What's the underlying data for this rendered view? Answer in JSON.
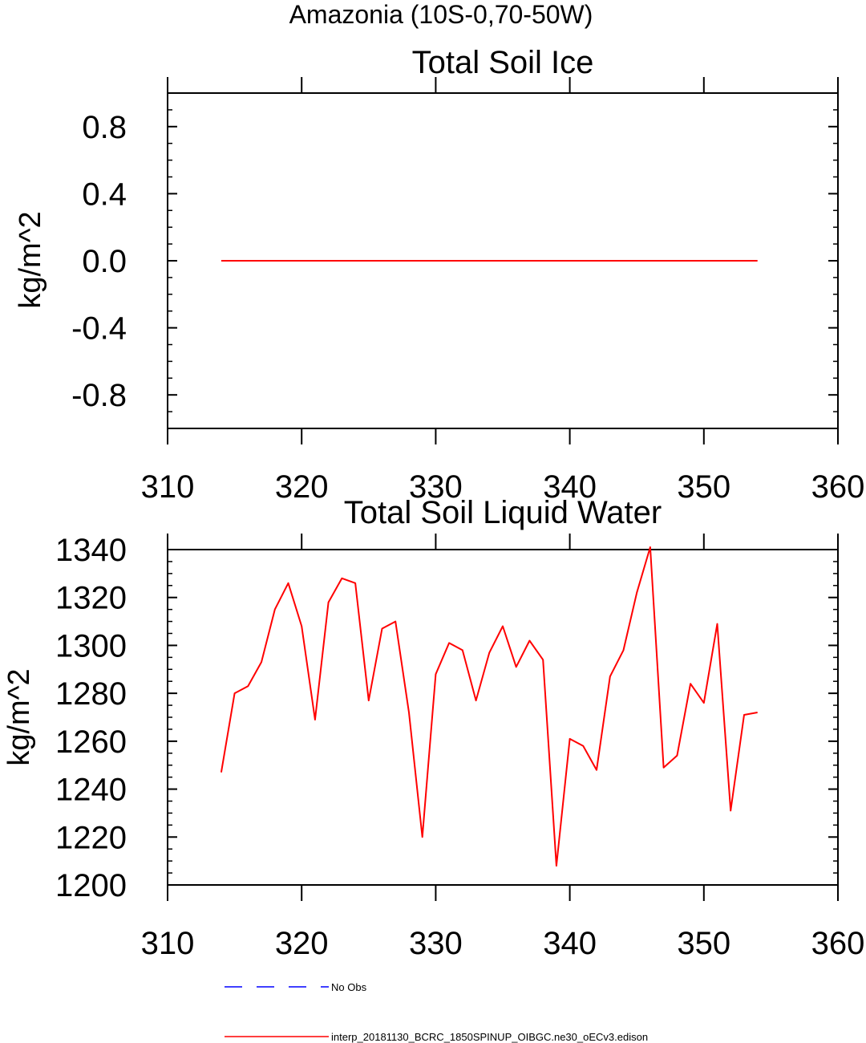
{
  "title": "Amazonia (10S-0,70-50W)",
  "colors": {
    "model": "#ff0000",
    "obs": "#0000ff",
    "axis": "#000000"
  },
  "chart_data": [
    {
      "type": "line",
      "title": "Total Soil Ice",
      "xlabel": "",
      "ylabel": "kg/m^2",
      "xlim": [
        310,
        360
      ],
      "ylim": [
        -1,
        1
      ],
      "x_ticks": [
        "310",
        "320",
        "330",
        "340",
        "350",
        "360"
      ],
      "y_ticks": [
        "0.8",
        "0.4",
        "0.0",
        "-0.4",
        "-0.8"
      ],
      "y_tick_values": [
        0.8,
        0.4,
        0.0,
        -0.4,
        -0.8
      ],
      "grid": false,
      "series": [
        {
          "name": "interp_20181130_BCRC_1850SPINUP_OIBGC.ne30_oECv3.edison",
          "x": [
            314,
            354
          ],
          "values": [
            0,
            0
          ]
        }
      ]
    },
    {
      "type": "line",
      "title": "Total Soil Liquid Water",
      "xlabel": "",
      "ylabel": "kg/m^2",
      "xlim": [
        310,
        360
      ],
      "ylim": [
        1200,
        1340
      ],
      "x_ticks": [
        "310",
        "320",
        "330",
        "340",
        "350",
        "360"
      ],
      "y_ticks": [
        "1340",
        "1320",
        "1300",
        "1280",
        "1260",
        "1240",
        "1220",
        "1200"
      ],
      "y_tick_values": [
        1340,
        1320,
        1300,
        1280,
        1260,
        1240,
        1220,
        1200
      ],
      "grid": false,
      "series": [
        {
          "name": "interp_20181130_BCRC_1850SPINUP_OIBGC.ne30_oECv3.edison",
          "x": [
            314,
            315,
            316,
            317,
            318,
            319,
            320,
            321,
            322,
            323,
            324,
            325,
            326,
            327,
            328,
            329,
            330,
            331,
            332,
            333,
            334,
            335,
            336,
            337,
            338,
            339,
            340,
            341,
            342,
            343,
            344,
            345,
            346,
            347,
            348,
            349,
            350,
            351,
            352,
            353,
            354
          ],
          "values": [
            1247,
            1280,
            1283,
            1293,
            1315,
            1326,
            1308,
            1269,
            1318,
            1328,
            1326,
            1277,
            1307,
            1310,
            1272,
            1220,
            1288,
            1301,
            1298,
            1277,
            1297,
            1308,
            1291,
            1302,
            1294,
            1208,
            1261,
            1258,
            1248,
            1287,
            1298,
            1322,
            1341,
            1249,
            1254,
            1284,
            1276,
            1309,
            1231,
            1271,
            1272
          ]
        }
      ]
    }
  ],
  "legend": {
    "placement": "bottom",
    "entries": [
      {
        "label": "No Obs",
        "style": "dashed",
        "color": "#0000ff"
      },
      {
        "label": "interp_20181130_BCRC_1850SPINUP_OIBGC.ne30_oECv3.edison",
        "style": "solid",
        "color": "#ff0000"
      }
    ]
  }
}
